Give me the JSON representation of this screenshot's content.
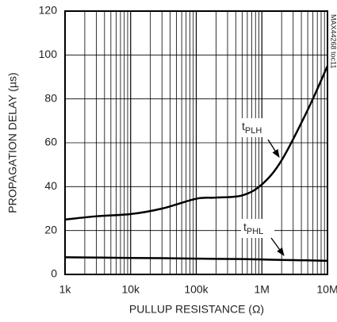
{
  "chart_data": {
    "type": "line",
    "xlabel": "PULLUP RESISTANCE (Ω)",
    "ylabel": "PROPAGATION DELAY (µs)",
    "side_note": "MAX44268 toc11",
    "x": [
      1000,
      3000,
      10000,
      30000,
      100000,
      200000,
      500000,
      1000000,
      2000000,
      5000000,
      10000000
    ],
    "series": [
      {
        "name": "tPLH",
        "color": "#000000",
        "values": [
          25,
          26.5,
          27.5,
          30,
          34.5,
          35,
          36,
          41,
          52,
          75,
          95
        ]
      },
      {
        "name": "tPHL",
        "color": "#000000",
        "values": [
          7.8,
          7.7,
          7.5,
          7.4,
          7.2,
          7.1,
          7.0,
          6.8,
          6.6,
          6.4,
          6.2
        ]
      }
    ],
    "annotations": [
      {
        "base": "t",
        "sub": "PLH"
      },
      {
        "base": "t",
        "sub": "PHL"
      }
    ],
    "xscale": "log",
    "xlim": [
      1000,
      10000000
    ],
    "xticks": [
      {
        "value": 1000,
        "label": "1k"
      },
      {
        "value": 10000,
        "label": "10k"
      },
      {
        "value": 100000,
        "label": "100k"
      },
      {
        "value": 1000000,
        "label": "1M"
      },
      {
        "value": 10000000,
        "label": "10M"
      }
    ],
    "ylim": [
      0,
      120
    ],
    "yticks": [
      0,
      20,
      40,
      60,
      80,
      100,
      120
    ],
    "grid": true
  }
}
